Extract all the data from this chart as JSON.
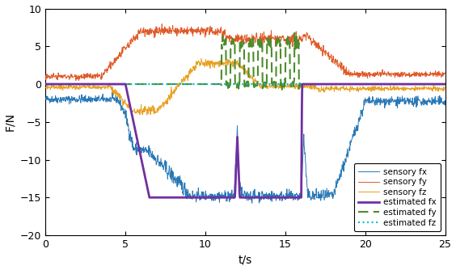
{
  "xlim": [
    0,
    25
  ],
  "ylim": [
    -20,
    10
  ],
  "xlabel": "t/s",
  "ylabel": "F/N",
  "yticks": [
    -20,
    -15,
    -10,
    -5,
    0,
    5,
    10
  ],
  "xticks": [
    0,
    5,
    10,
    15,
    20,
    25
  ],
  "figsize": [
    5.64,
    3.34
  ],
  "dpi": 100,
  "legend_labels": [
    "sensory fx",
    "sensory fy",
    "sensory fz",
    "estimated fx",
    "estimated fy",
    "estimated fz"
  ],
  "line_colors": {
    "sensory_fx": "#2878b5",
    "sensory_fy": "#e05a29",
    "sensory_fz": "#e8a020",
    "estimated_fx": "#7030a0",
    "estimated_fy": "#4d8c2a",
    "estimated_fz": "#00bcd4"
  }
}
